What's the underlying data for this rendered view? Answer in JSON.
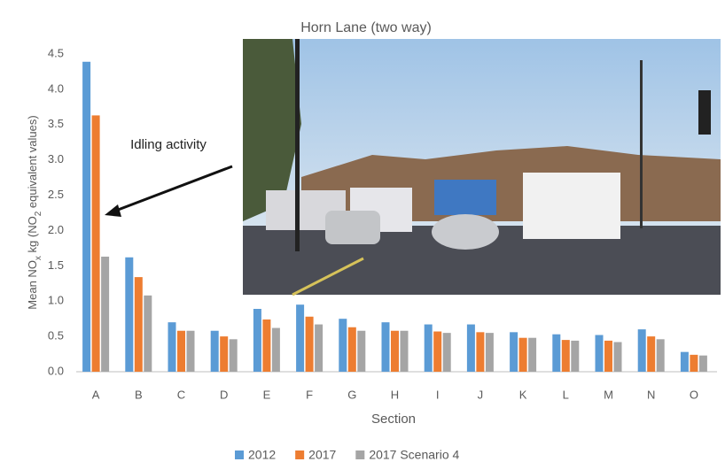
{
  "chart_data": {
    "type": "bar",
    "title": "Horn Lane (two way)",
    "y_label_parts": [
      "Mean NO",
      "x",
      " kg (NO",
      "2",
      " equivalent values)"
    ],
    "x_label": "Section",
    "annotation": "Idling activity",
    "categories": [
      "A",
      "B",
      "C",
      "D",
      "E",
      "F",
      "G",
      "H",
      "I",
      "J",
      "K",
      "L",
      "M",
      "N",
      "O"
    ],
    "series": [
      {
        "name": "2012",
        "color": "#5b9bd5",
        "values": [
          4.39,
          1.62,
          0.7,
          0.58,
          0.89,
          0.95,
          0.75,
          0.7,
          0.67,
          0.67,
          0.56,
          0.53,
          0.52,
          0.6,
          0.28
        ]
      },
      {
        "name": "2017",
        "color": "#ed7d31",
        "values": [
          3.63,
          1.34,
          0.58,
          0.5,
          0.74,
          0.78,
          0.63,
          0.58,
          0.57,
          0.56,
          0.48,
          0.45,
          0.44,
          0.5,
          0.24
        ]
      },
      {
        "name": "2017 Scenario 4",
        "color": "#a5a5a5",
        "values": [
          1.63,
          1.08,
          0.58,
          0.46,
          0.62,
          0.67,
          0.58,
          0.58,
          0.55,
          0.55,
          0.48,
          0.44,
          0.42,
          0.46,
          0.23
        ]
      }
    ],
    "ylim": [
      0,
      4.5
    ],
    "yticks": [
      {
        "value": 0,
        "label": "0.0"
      },
      {
        "value": 0.5,
        "label": "0.5"
      },
      {
        "value": 1,
        "label": "1.0"
      },
      {
        "value": 1.5,
        "label": "1.5"
      },
      {
        "value": 2,
        "label": "2.0"
      },
      {
        "value": 2.5,
        "label": "2.5"
      },
      {
        "value": 3,
        "label": "3.0"
      },
      {
        "value": 3.5,
        "label": "3.5"
      },
      {
        "value": 4,
        "label": "4.0"
      },
      {
        "value": 4.5,
        "label": "4.5"
      }
    ],
    "grid": false,
    "legend": "bottom"
  }
}
